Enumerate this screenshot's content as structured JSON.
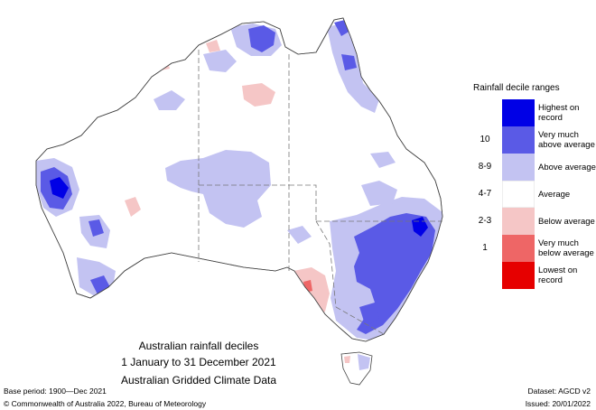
{
  "map": {
    "title_lines": [
      "Australian rainfall deciles",
      "1 January to 31 December 2021",
      "Australian Gridded Climate Data"
    ]
  },
  "legend": {
    "title": "Rainfall decile ranges",
    "entries": [
      {
        "decile": "",
        "label": "Highest on record",
        "color": "#0000e6"
      },
      {
        "decile": "10",
        "label": "Very much above average",
        "color": "#5a5ae6"
      },
      {
        "decile": "8-9",
        "label": "Above average",
        "color": "#c3c3f2"
      },
      {
        "decile": "4-7",
        "label": "Average",
        "color": "#ffffff"
      },
      {
        "decile": "2-3",
        "label": "Below average",
        "color": "#f5c6c6"
      },
      {
        "decile": "1",
        "label": "Very much below average",
        "color": "#ee6666"
      },
      {
        "decile": "",
        "label": "Lowest on record",
        "color": "#e60000"
      }
    ]
  },
  "footer": {
    "base_period": "Base period: 1900—Dec 2021",
    "dataset": "Dataset: AGCD v2",
    "copyright": "© Commonwealth of Australia 2022, Bureau of Meteorology",
    "issued": "Issued: 20/01/2022"
  }
}
